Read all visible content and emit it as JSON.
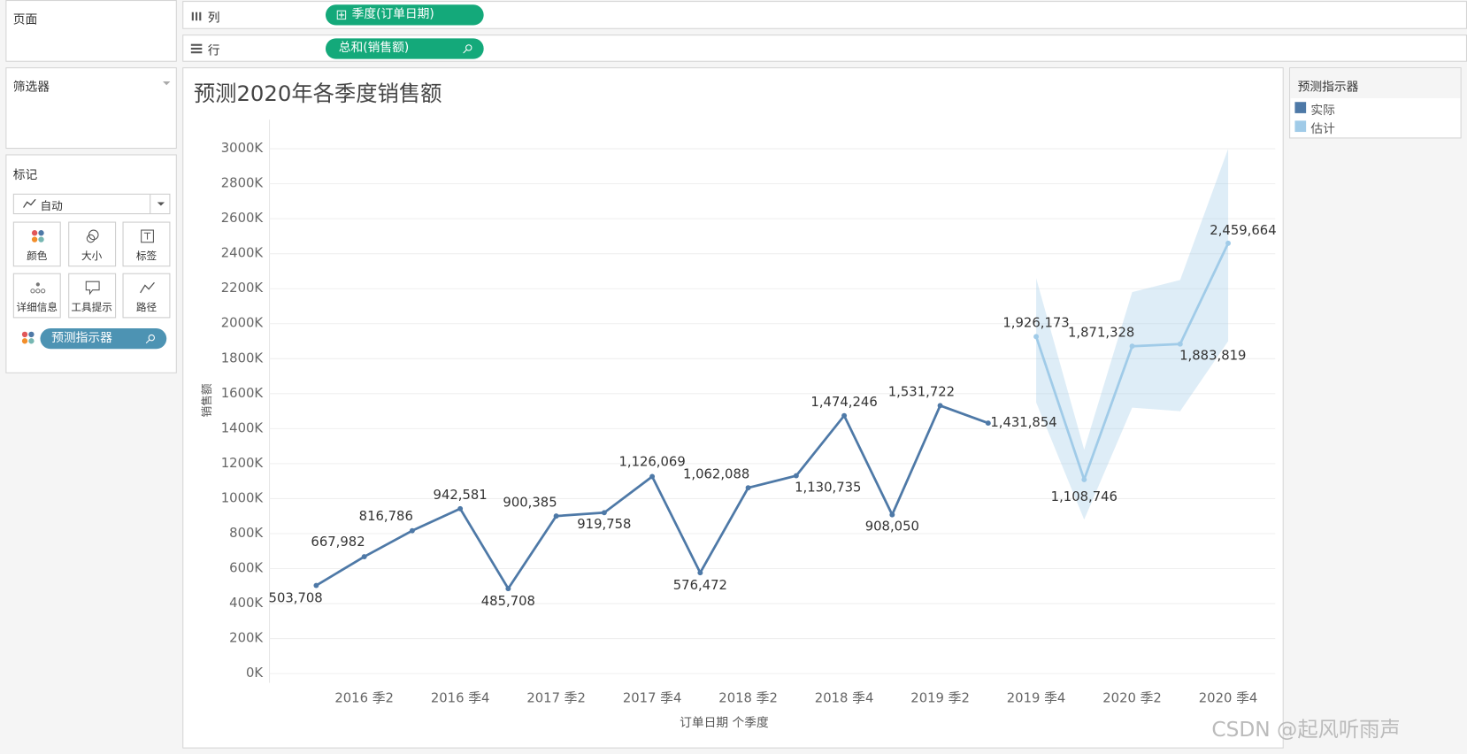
{
  "shelves": {
    "columns_label": "列",
    "columns_pill": "季度(订单日期)",
    "rows_label": "行",
    "rows_pill": "总和(销售额)"
  },
  "panels": {
    "pages": "页面",
    "filters": "筛选器",
    "marks": "标记",
    "mark_type": "自动",
    "buttons": [
      "颜色",
      "大小",
      "标签",
      "详细信息",
      "工具提示",
      "路径"
    ],
    "mark_pill": "预测指示器"
  },
  "watermark": "CSDN @起风听雨声",
  "chart_data": {
    "type": "line",
    "title": "预测2020年各季度销售额",
    "x_label": "订单日期 个季度",
    "y_label": "销售额",
    "legend_title": "预测指示器",
    "legend_position": "right",
    "grid": true,
    "categories": [
      null,
      "2016 季2",
      null,
      "2016 季4",
      null,
      "2017 季2",
      null,
      "2017 季4",
      null,
      "2018 季2",
      null,
      "2018 季4",
      null,
      "2019 季2",
      null,
      "2019 季4",
      null,
      "2020 季2",
      null,
      "2020 季4"
    ],
    "series": [
      {
        "name": "实际",
        "color": "#4e79a7",
        "values": [
          503708,
          667982,
          816786,
          942581,
          485708,
          900385,
          919758,
          1126069,
          576472,
          1062088,
          1130735,
          1474246,
          908050,
          1531722,
          1431854,
          null,
          null,
          null,
          null,
          null
        ],
        "value_labels": [
          "503,708",
          "667,982",
          "816,786",
          "942,581",
          "485,708",
          "900,385",
          "919,758",
          "1,126,069",
          "576,472",
          "1,062,088",
          "1,130,735",
          "1,474,246",
          "908,050",
          "1,531,722",
          "1,431,854",
          null,
          null,
          null,
          null,
          null
        ]
      },
      {
        "name": "估计",
        "color": "#a0cbe8",
        "values": [
          null,
          null,
          null,
          null,
          null,
          null,
          null,
          null,
          null,
          null,
          null,
          null,
          null,
          null,
          null,
          1926173,
          1108746,
          1871328,
          1883819,
          2459664
        ],
        "value_labels": [
          null,
          null,
          null,
          null,
          null,
          null,
          null,
          null,
          null,
          null,
          null,
          null,
          null,
          null,
          null,
          "1,926,173",
          "1,108,746",
          "1,871,328",
          "1,883,819",
          "2,459,664"
        ]
      }
    ],
    "forecast_band": {
      "color": "#a0cbe8",
      "upper": [
        null,
        null,
        null,
        null,
        null,
        null,
        null,
        null,
        null,
        null,
        null,
        null,
        null,
        null,
        null,
        2260000,
        1280000,
        2180000,
        2250000,
        3000000
      ],
      "lower": [
        null,
        null,
        null,
        null,
        null,
        null,
        null,
        null,
        null,
        null,
        null,
        null,
        null,
        null,
        null,
        1550000,
        880000,
        1520000,
        1500000,
        1900000
      ]
    },
    "ylim": [
      0,
      3000000
    ],
    "yticks": [
      {
        "value": 0,
        "label": "0K"
      },
      {
        "value": 200000,
        "label": "200K"
      },
      {
        "value": 400000,
        "label": "400K"
      },
      {
        "value": 600000,
        "label": "600K"
      },
      {
        "value": 800000,
        "label": "800K"
      },
      {
        "value": 1000000,
        "label": "1000K"
      },
      {
        "value": 1200000,
        "label": "1200K"
      },
      {
        "value": 1400000,
        "label": "1400K"
      },
      {
        "value": 1600000,
        "label": "1600K"
      },
      {
        "value": 1800000,
        "label": "1800K"
      },
      {
        "value": 2000000,
        "label": "2000K"
      },
      {
        "value": 2200000,
        "label": "2200K"
      },
      {
        "value": 2400000,
        "label": "2400K"
      },
      {
        "value": 2600000,
        "label": "2600K"
      },
      {
        "value": 2800000,
        "label": "2800K"
      },
      {
        "value": 3000000,
        "label": "3000K"
      }
    ]
  }
}
